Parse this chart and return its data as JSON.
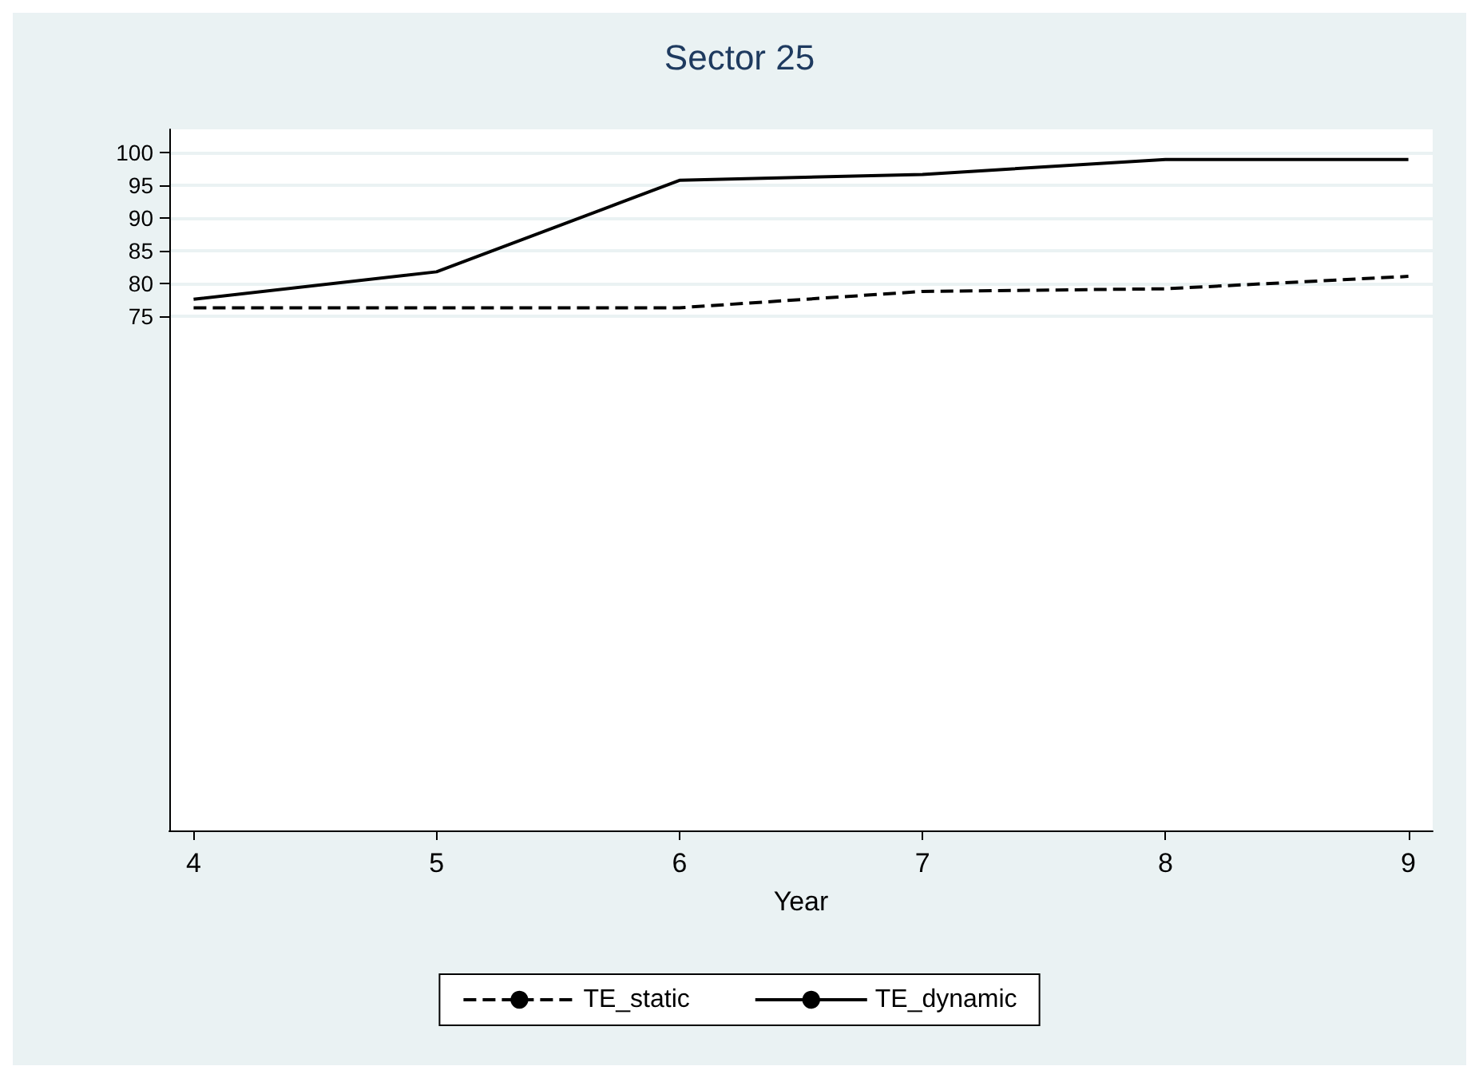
{
  "chart_data": {
    "type": "line",
    "title": "Sector 25",
    "xlabel": "Year",
    "x": [
      4,
      5,
      6,
      7,
      8,
      9
    ],
    "series": [
      {
        "name": "TE_static",
        "color": "#000000",
        "line_style": "dashed",
        "values": [
          76.3,
          76.3,
          76.3,
          78.8,
          79.2,
          81.1
        ]
      },
      {
        "name": "TE_dynamic",
        "color": "#000000",
        "line_style": "solid",
        "values": [
          77.6,
          81.8,
          95.8,
          96.7,
          99.0,
          99.0
        ]
      }
    ],
    "xlim": [
      3.9,
      9.1
    ],
    "xticks": [
      4,
      5,
      6,
      7,
      8,
      9
    ],
    "ylim": [
      -3.7,
      103.6
    ],
    "yticks": [
      75,
      80,
      85,
      90,
      95,
      100
    ],
    "grid": "y",
    "legend": "bottom",
    "marker": "none"
  }
}
